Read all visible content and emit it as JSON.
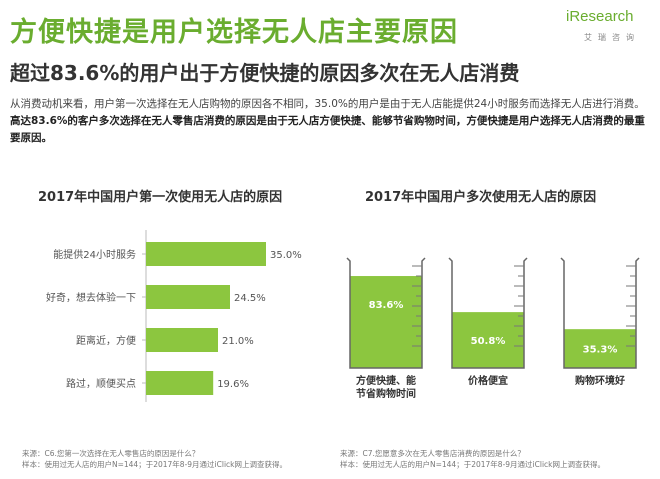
{
  "page": {
    "title": "方便快捷是用户选择无人店主要原因",
    "subtitle": "超过83.6%的用户出于方便快捷的原因多次在无人店消费",
    "desc_plain": "从消费动机来看，用户第一次选择在无人店购物的原因各不相同，35.0%的用户是由于无人店能提供24小时服务而选择无人店进行消费。",
    "desc_bold": "高达83.6%的客户多次选择在无人零售店消费的原因是由于无人店方便快捷、能够节省购物时间，方便快捷是用户选择无人店消费的最重要原因。"
  },
  "logo": {
    "main": "iResearch",
    "sub": "艾瑞咨询",
    "accent": "#6aad2f"
  },
  "colors": {
    "bar": "#8cc63f",
    "axis": "#bbbbbb",
    "label": "#555555"
  },
  "chart_data": [
    {
      "type": "bar",
      "orientation": "horizontal",
      "title": "2017年中国用户第一次使用无人店的原因",
      "categories": [
        "能提供24小时服务",
        "好奇，想去体验一下",
        "距离近，方便",
        "路过，顺便买点"
      ],
      "values": [
        35.0,
        24.5,
        21.0,
        19.6
      ],
      "value_labels": [
        "35.0%",
        "24.5%",
        "21.0%",
        "19.6%"
      ],
      "xlim": [
        0,
        40
      ],
      "source_line1": "来源：C6.您第一次选择在无人零售店的原因是什么？",
      "source_line2": "样本：使用过无人店的用户N=144；于2017年8-9月通过iClick网上调查获得。"
    },
    {
      "type": "bar",
      "style": "beaker",
      "title": "2017年中国用户多次使用无人店的原因",
      "categories": [
        "方便快捷、能节省购物时间",
        "价格便宜",
        "购物环境好"
      ],
      "category_lines": [
        [
          "方便快捷、能",
          "节省购物时间"
        ],
        [
          "价格便宜"
        ],
        [
          "购物环境好"
        ]
      ],
      "values": [
        83.6,
        50.8,
        35.3
      ],
      "value_labels": [
        "83.6%",
        "50.8%",
        "35.3%"
      ],
      "ylim": [
        0,
        100
      ],
      "source_line1": "来源：C7.您愿意多次在无人零售店消费的原因是什么？",
      "source_line2": "样本：使用过无人店的用户N=144；于2017年8-9月通过iClick网上调查获得。"
    }
  ]
}
